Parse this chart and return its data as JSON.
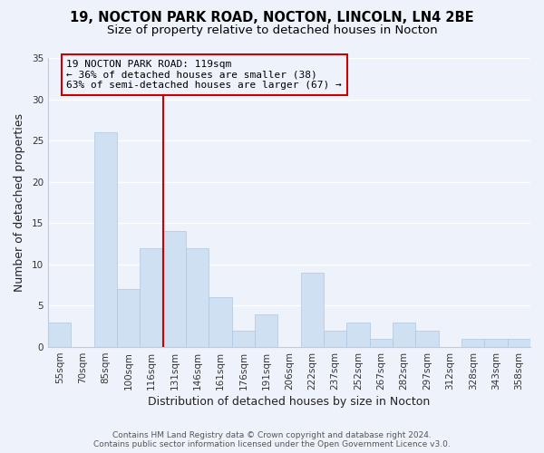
{
  "title": "19, NOCTON PARK ROAD, NOCTON, LINCOLN, LN4 2BE",
  "subtitle": "Size of property relative to detached houses in Nocton",
  "xlabel": "Distribution of detached houses by size in Nocton",
  "ylabel": "Number of detached properties",
  "bar_labels": [
    "55sqm",
    "70sqm",
    "85sqm",
    "100sqm",
    "116sqm",
    "131sqm",
    "146sqm",
    "161sqm",
    "176sqm",
    "191sqm",
    "206sqm",
    "222sqm",
    "237sqm",
    "252sqm",
    "267sqm",
    "282sqm",
    "297sqm",
    "312sqm",
    "328sqm",
    "343sqm",
    "358sqm"
  ],
  "bar_values": [
    3,
    0,
    26,
    7,
    12,
    14,
    12,
    6,
    2,
    4,
    0,
    9,
    2,
    3,
    1,
    3,
    2,
    0,
    1,
    1,
    1
  ],
  "bar_color": "#cfe0f2",
  "bar_edge_color": "#aec8e0",
  "vline_x_index": 4,
  "vline_color": "#cc0000",
  "annotation_lines": [
    "19 NOCTON PARK ROAD: 119sqm",
    "← 36% of detached houses are smaller (38)",
    "63% of semi-detached houses are larger (67) →"
  ],
  "ylim": [
    0,
    35
  ],
  "yticks": [
    0,
    5,
    10,
    15,
    20,
    25,
    30,
    35
  ],
  "footer_line1": "Contains HM Land Registry data © Crown copyright and database right 2024.",
  "footer_line2": "Contains public sector information licensed under the Open Government Licence v3.0.",
  "bg_color": "#eef2fb",
  "grid_color": "#ffffff",
  "title_fontsize": 10.5,
  "subtitle_fontsize": 9.5,
  "axis_label_fontsize": 9,
  "tick_fontsize": 7.5,
  "annotation_fontsize": 8,
  "footer_fontsize": 6.5
}
